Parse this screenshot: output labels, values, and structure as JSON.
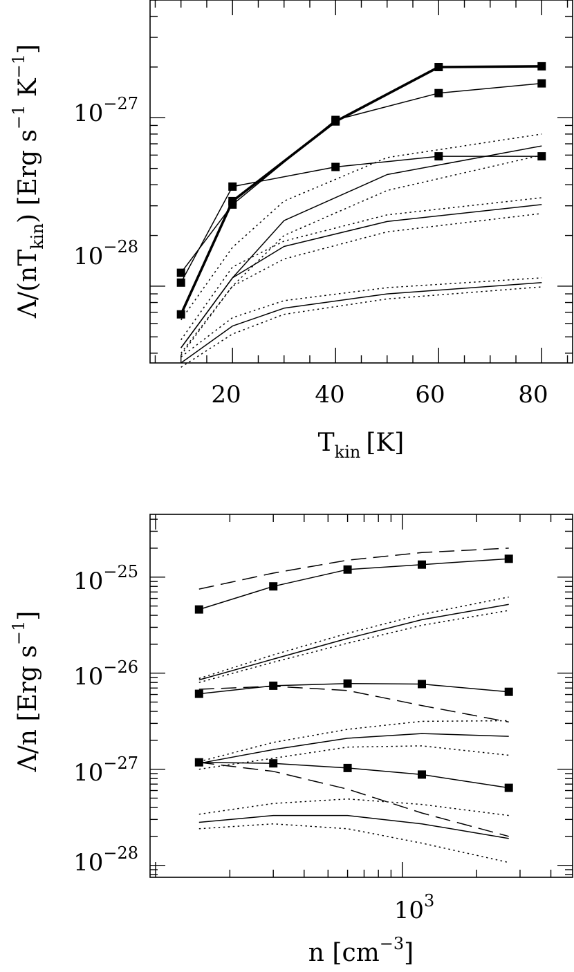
{
  "chart_data": [
    {
      "type": "line",
      "name": "top-panel",
      "xlabel": {
        "main": "T",
        "sub": "kin",
        "unit": "[K]"
      },
      "ylabel": {
        "lead": "Λ/(nT",
        "sub": "kin",
        "unit_open": ") [Erg s",
        "exp1": "−1",
        "k": " K",
        "exp2": "−1",
        "close": "]"
      },
      "xscale": "linear",
      "yscale": "log",
      "xlim": [
        4,
        86
      ],
      "ylim": [
        3.5e-29,
        5e-27
      ],
      "x_ticks": [
        20,
        40,
        60,
        80
      ],
      "x_tick_labels": [
        "20",
        "40",
        "60",
        "80"
      ],
      "y_ticks": [
        {
          "base": "10",
          "exp": "−28",
          "value": 1e-28
        },
        {
          "base": "10",
          "exp": "−27",
          "value": 1e-27
        }
      ],
      "series": [
        {
          "name": "squares-thick",
          "style": "solid-thick",
          "markers": true,
          "x": [
            10,
            20,
            40,
            60,
            80
          ],
          "y": [
            6.8e-29,
            3.2e-28,
            9.5e-28,
            2e-27,
            2.02e-27
          ]
        },
        {
          "name": "squares-thin-a",
          "style": "solid",
          "markers": true,
          "x": [
            10,
            20,
            40,
            60,
            80
          ],
          "y": [
            1.2e-28,
            3.05e-28,
            9.7e-28,
            1.4e-27,
            1.6e-27
          ]
        },
        {
          "name": "squares-thin-b",
          "style": "solid",
          "markers": true,
          "x": [
            10,
            20,
            40,
            60,
            80
          ],
          "y": [
            1.05e-28,
            3.9e-28,
            5.1e-28,
            5.9e-28,
            5.9e-28
          ]
        },
        {
          "name": "line-upper",
          "style": "solid",
          "markers": false,
          "x": [
            10,
            20,
            30,
            50,
            80
          ],
          "y": [
            4.3e-29,
            1.12e-28,
            2.45e-28,
            4.6e-28,
            6.8e-28
          ]
        },
        {
          "name": "dotted-upper-a",
          "style": "dotted",
          "markers": false,
          "x": [
            10,
            20,
            30,
            50,
            80
          ],
          "y": [
            6.3e-29,
            1.7e-28,
            3.2e-28,
            5.8e-28,
            8e-28
          ]
        },
        {
          "name": "dotted-upper-b",
          "style": "dotted",
          "markers": false,
          "x": [
            10,
            20,
            30,
            50,
            80
          ],
          "y": [
            4e-29,
            1e-28,
            2e-28,
            3.7e-28,
            6e-28
          ]
        },
        {
          "name": "line-mid",
          "style": "solid",
          "markers": false,
          "x": [
            10,
            20,
            30,
            50,
            80
          ],
          "y": [
            4.3e-29,
            1.12e-28,
            1.72e-28,
            2.42e-28,
            3.05e-28
          ]
        },
        {
          "name": "dotted-mid-a",
          "style": "dotted",
          "markers": false,
          "x": [
            10,
            20,
            30,
            50,
            80
          ],
          "y": [
            4.8e-29,
            1.3e-28,
            1.85e-28,
            2.65e-28,
            3.35e-28
          ]
        },
        {
          "name": "dotted-mid-b",
          "style": "dotted",
          "markers": false,
          "x": [
            10,
            20,
            30,
            50,
            80
          ],
          "y": [
            3.9e-29,
            1e-28,
            1.45e-28,
            2.1e-28,
            2.7e-28
          ]
        },
        {
          "name": "line-low",
          "style": "solid",
          "markers": false,
          "x": [
            10,
            20,
            30,
            50,
            80
          ],
          "y": [
            3.5e-29,
            5.8e-29,
            7.4e-29,
            9e-29,
            1.05e-28
          ]
        },
        {
          "name": "dotted-low-a",
          "style": "dotted",
          "markers": false,
          "x": [
            10,
            20,
            30,
            50,
            80
          ],
          "y": [
            3.8e-29,
            6.5e-29,
            8.2e-29,
            9.8e-29,
            1.12e-28
          ]
        },
        {
          "name": "dotted-low-b",
          "style": "dotted",
          "markers": false,
          "x": [
            10,
            20,
            30,
            50,
            80
          ],
          "y": [
            3.3e-29,
            5.2e-29,
            6.8e-29,
            8.4e-29,
            9.9e-29
          ]
        }
      ]
    },
    {
      "type": "line",
      "name": "bottom-panel",
      "xlabel": {
        "main": "n [cm",
        "exp": "−3",
        "close": "]"
      },
      "ylabel": {
        "main": "Λ/n [Erg s",
        "exp": "−1",
        "close": "]"
      },
      "xscale": "log",
      "yscale": "log",
      "xlim": [
        95,
        4900
      ],
      "ylim": [
        7.5e-29,
        4.5e-25
      ],
      "x_ticks": [
        {
          "base": "10",
          "exp": "3",
          "value": 1000
        }
      ],
      "y_ticks": [
        {
          "base": "10",
          "exp": "−28",
          "value": 1e-28
        },
        {
          "base": "10",
          "exp": "−27",
          "value": 1e-27
        },
        {
          "base": "10",
          "exp": "−26",
          "value": 1e-26
        },
        {
          "base": "10",
          "exp": "−25",
          "value": 1e-25
        }
      ],
      "series": [
        {
          "name": "top-dashed",
          "style": "dashed",
          "markers": false,
          "x": [
            150,
            300,
            600,
            1200,
            2700
          ],
          "y": [
            7.5e-26,
            1.1e-25,
            1.5e-25,
            1.8e-25,
            2e-25
          ]
        },
        {
          "name": "top-squares",
          "style": "solid",
          "markers": true,
          "x": [
            150,
            300,
            600,
            1200,
            2700
          ],
          "y": [
            4.6e-26,
            8e-26,
            1.2e-25,
            1.35e-25,
            1.55e-25
          ]
        },
        {
          "name": "mid-upper-solid",
          "style": "solid",
          "markers": false,
          "x": [
            150,
            300,
            600,
            1200,
            2700
          ],
          "y": [
            8.5e-27,
            1.4e-26,
            2.3e-26,
            3.6e-26,
            5.2e-26
          ]
        },
        {
          "name": "mid-upper-dotted-a",
          "style": "dotted",
          "markers": false,
          "x": [
            150,
            300,
            600,
            1200,
            2700
          ],
          "y": [
            8.8e-27,
            1.55e-26,
            2.6e-26,
            4.1e-26,
            6.2e-26
          ]
        },
        {
          "name": "mid-upper-dotted-b",
          "style": "dotted",
          "markers": false,
          "x": [
            150,
            300,
            600,
            1200,
            2700
          ],
          "y": [
            8e-27,
            1.3e-26,
            2.05e-26,
            3.15e-26,
            4.5e-26
          ]
        },
        {
          "name": "mid-squares",
          "style": "solid",
          "markers": true,
          "x": [
            150,
            300,
            600,
            1200,
            2700
          ],
          "y": [
            6.1e-27,
            7.4e-27,
            7.8e-27,
            7.7e-27,
            6.4e-27
          ]
        },
        {
          "name": "mid-dashed",
          "style": "dashed",
          "markers": false,
          "x": [
            150,
            300,
            600,
            1200,
            2700
          ],
          "y": [
            6.8e-27,
            7.3e-27,
            6.6e-27,
            4.6e-27,
            3.1e-27
          ]
        },
        {
          "name": "lower-solid",
          "style": "solid",
          "markers": false,
          "x": [
            150,
            300,
            600,
            1200,
            2700
          ],
          "y": [
            1.15e-27,
            1.6e-27,
            2.1e-27,
            2.35e-27,
            2.2e-27
          ]
        },
        {
          "name": "lower-dotted-a",
          "style": "dotted",
          "markers": false,
          "x": [
            150,
            300,
            600,
            1200,
            2700
          ],
          "y": [
            1.2e-27,
            1.9e-27,
            2.6e-27,
            3.15e-27,
            3.2e-27
          ]
        },
        {
          "name": "lower-dotted-b",
          "style": "dotted",
          "markers": false,
          "x": [
            150,
            300,
            600,
            1200,
            2700
          ],
          "y": [
            1e-27,
            1.3e-27,
            1.7e-27,
            1.75e-27,
            1.4e-27
          ]
        },
        {
          "name": "lower-squares",
          "style": "solid",
          "markers": true,
          "x": [
            150,
            300,
            600,
            1200,
            2700
          ],
          "y": [
            1.18e-27,
            1.15e-27,
            1.03e-27,
            8.8e-28,
            6.4e-28
          ]
        },
        {
          "name": "lower-dashed",
          "style": "dashed",
          "markers": false,
          "x": [
            150,
            300,
            600,
            1200,
            2700
          ],
          "y": [
            1.18e-27,
            9.5e-28,
            6.2e-28,
            3.5e-28,
            2e-28
          ]
        },
        {
          "name": "bottom-solid",
          "style": "solid",
          "markers": false,
          "x": [
            150,
            300,
            600,
            1200,
            2700
          ],
          "y": [
            2.8e-28,
            3.3e-28,
            3.3e-28,
            2.7e-28,
            1.9e-28
          ]
        },
        {
          "name": "bottom-dotted-a",
          "style": "dotted",
          "markers": false,
          "x": [
            150,
            300,
            600,
            1200,
            2700
          ],
          "y": [
            3.4e-28,
            4.4e-28,
            4.9e-28,
            4.3e-28,
            3.3e-28
          ]
        },
        {
          "name": "bottom-dotted-b",
          "style": "dotted",
          "markers": false,
          "x": [
            150,
            300,
            600,
            1200,
            2700
          ],
          "y": [
            2.4e-28,
            2.7e-28,
            2.4e-28,
            1.7e-28,
            1.07e-28
          ]
        }
      ]
    }
  ]
}
